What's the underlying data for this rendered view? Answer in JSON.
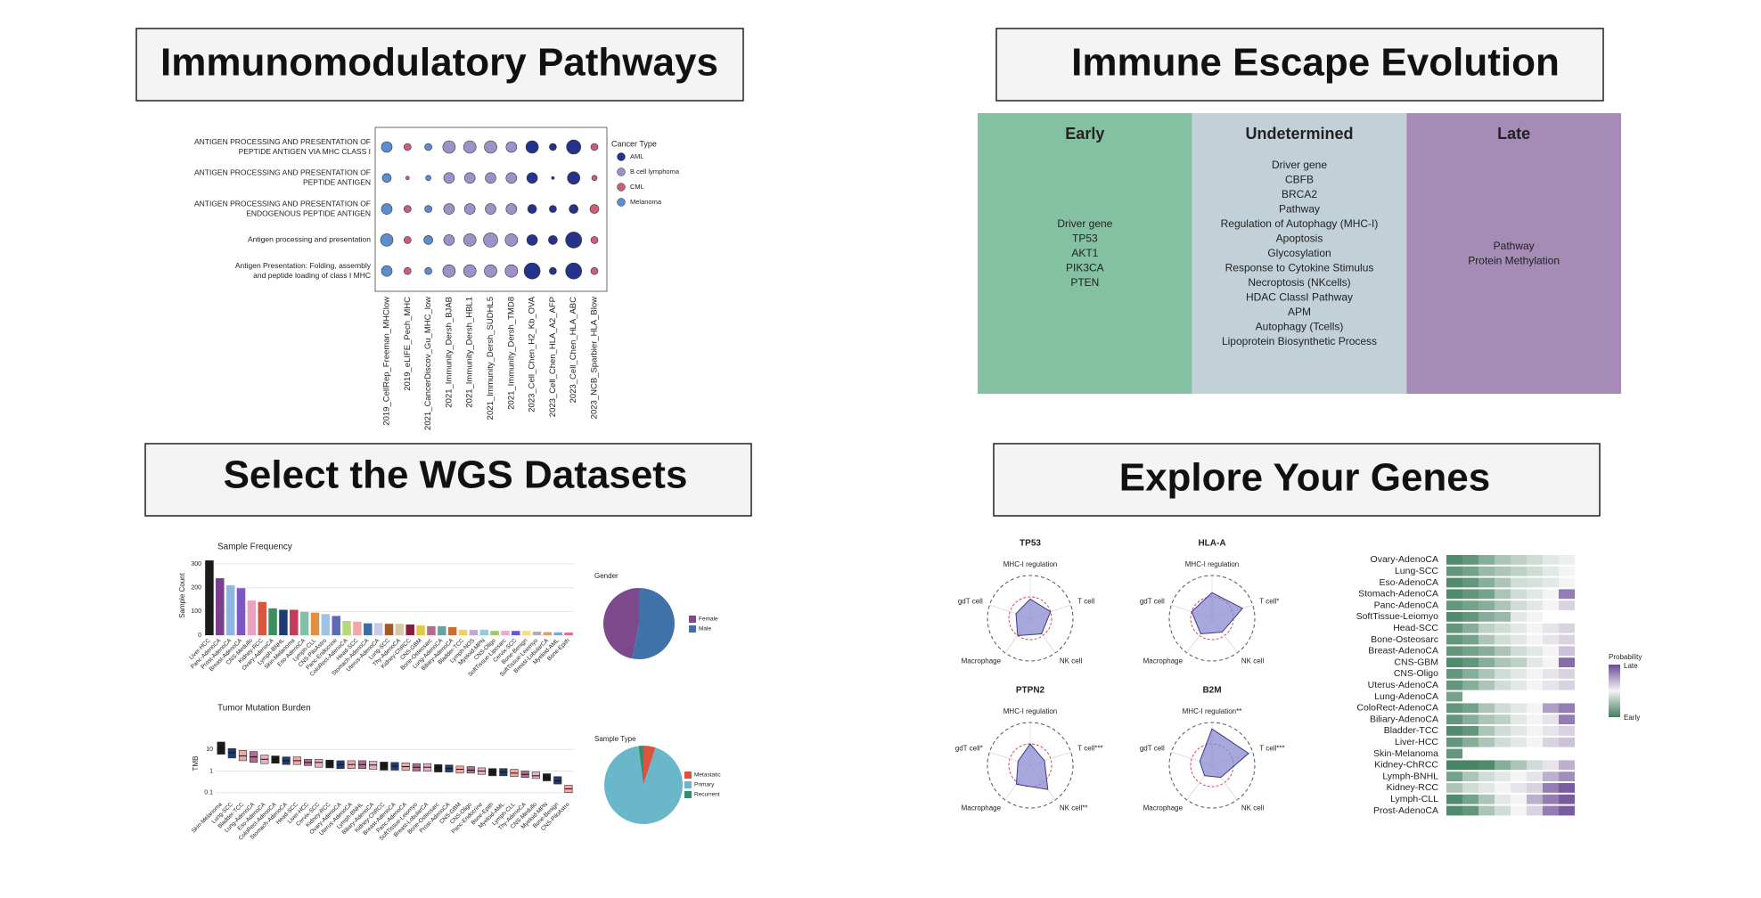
{
  "panels": [
    {
      "title": "Immunomodulatory Pathways",
      "chart": {
        "type": "dotplot",
        "pathways": [
          [
            "ANTIGEN PROCESSING AND PRESENTATION OF",
            "PEPTIDE ANTIGEN VIA MHC CLASS I"
          ],
          [
            "ANTIGEN PROCESSING AND PRESENTATION OF",
            "PEPTIDE ANTIGEN"
          ],
          [
            "ANTIGEN PROCESSING AND PRESENTATION OF",
            "ENDOGENOUS PEPTIDE ANTIGEN"
          ],
          [
            "Antigen processing and presentation"
          ],
          [
            "Antigen Presentation: Folding, assembly",
            "and peptide loading of class I MHC"
          ]
        ],
        "datasets": [
          "2019_CellRep_Freeman_MHClow",
          "2019_eLIFE_Pech_MHC",
          "2021_CancerDiscov_Gu_MHC_low",
          "2021_Immunity_Dersh_BJAB",
          "2021_Immunity_Dersh_HBL1",
          "2021_Immunity_Dersh_SUDHL5",
          "2021_Immunity_Dersh_TMD8",
          "2023_Cell_Chen_H2_Kb_OVA",
          "2023_Cell_Chen_HLA_A2_AFP",
          "2023_Cell_Chen_HLA_ABC",
          "2023_NCB_Sparbier_HLA_Blow"
        ],
        "dataset_types": [
          "Melanoma",
          "CML",
          "Melanoma",
          "B cell lymphoma",
          "B cell lymphoma",
          "B cell lymphoma",
          "B cell lymphoma",
          "AML",
          "AML",
          "AML",
          "CML"
        ],
        "sizes": [
          [
            3,
            2,
            2,
            3.5,
            3.5,
            3.5,
            3,
            3.5,
            2,
            4,
            2
          ],
          [
            2.5,
            1,
            1.5,
            3,
            3,
            3,
            3,
            3,
            0.8,
            3.5,
            1.5
          ],
          [
            3,
            2,
            2,
            3,
            3,
            3,
            3,
            2.5,
            2,
            2.5,
            2.5
          ],
          [
            3.5,
            2,
            2.5,
            3,
            3.5,
            4,
            3.5,
            3,
            2.5,
            4.5,
            2
          ],
          [
            3,
            2,
            2,
            3.5,
            3.5,
            3.5,
            3.5,
            4.5,
            2,
            4.5,
            2
          ]
        ],
        "legend_title": "Cancer Type",
        "legend": [
          {
            "name": "AML",
            "color": "#26338a"
          },
          {
            "name": "B cell lymphoma",
            "color": "#9c92c8"
          },
          {
            "name": "CML",
            "color": "#c9607a"
          },
          {
            "name": "Melanoma",
            "color": "#5b8ed1"
          }
        ]
      }
    },
    {
      "title": "Immune Escape Evolution",
      "table": {
        "columns": [
          {
            "header": "Early",
            "color": "#84c1a3",
            "items": [
              "Driver gene",
              "TP53",
              "AKT1",
              "PIK3CA",
              "PTEN"
            ]
          },
          {
            "header": "Undetermined",
            "color": "#c2d1d8",
            "items": [
              "Driver gene",
              "CBFB",
              "BRCA2",
              "Pathway",
              "Regulation of Autophagy (MHC-I)",
              "Apoptosis",
              "Glycosylation",
              "Response to Cytokine Stimulus",
              "Necroptosis (NKcells)",
              "HDAC ClassI Pathway",
              "APM",
              "Autophagy (Tcells)",
              "Lipoprotein Biosynthetic Process"
            ]
          },
          {
            "header": "Late",
            "color": "#a58bb5",
            "items": [
              "Pathway",
              "Protein Methylation"
            ]
          }
        ]
      }
    },
    {
      "title": "Select the WGS Datasets",
      "palette": [
        "#1b1b1b",
        "#7b3f8c",
        "#8fb5e0",
        "#7e57c2",
        "#e7a3c0",
        "#d9553f",
        "#3d8f5f",
        "#1f3b73",
        "#c23b5a",
        "#7fc2a9",
        "#e48f3c",
        "#9ec3e6",
        "#5b6bb5",
        "#b7d97a",
        "#f0a8a8",
        "#3a6ea5",
        "#c9c9e8",
        "#a05a2c",
        "#d8c7a8",
        "#8b1c3f",
        "#e0c94b",
        "#b36b8f",
        "#66a3a3",
        "#d06c2b",
        "#f0d264",
        "#c6a4d8",
        "#8fcfd8",
        "#a0c96f",
        "#e8b0c8",
        "#6a5acd",
        "#f3e08e",
        "#b0b0b0",
        "#cda36c",
        "#76a7d6",
        "#d96f8a"
      ],
      "frequency": {
        "type": "bar",
        "title": "Sample Frequency",
        "ylabel": "Sample Count",
        "categories": [
          "Liver-HCC",
          "Panc-AdenoCA",
          "Prost-AdenoCA",
          "Breast-AdenoCA",
          "CNS-Medullo",
          "Kidney-RCC",
          "Ovary-AdenoCA",
          "Lymph-BNHL",
          "Skin-Melanoma",
          "Eso-AdenoCA",
          "Lymph-CLL",
          "CNS-PiloAstro",
          "Panc-Endocrine",
          "ColoRect-AdenoCA",
          "Head-SCC",
          "Stomach-AdenoCA",
          "Uterus-AdenoCA",
          "Lung-SCC",
          "Thy-AdenoCA",
          "Kidney-ChRCC",
          "CNS-GBM",
          "Bone-Osteosarc",
          "Lung-AdenoCA",
          "Biliary-AdenoCA",
          "Bladder-TCC",
          "Lymph-NOS",
          "Myeloid-MPN",
          "CNS-Oligo",
          "SoftTissue-Liposarc",
          "Cervix-SCC",
          "Bone-Benign",
          "SoftTissue-Leiomyo",
          "Breast-LobularCA",
          "Myeloid-AML",
          "Bone-Epith"
        ],
        "values": [
          315,
          240,
          210,
          198,
          146,
          140,
          113,
          107,
          107,
          98,
          95,
          89,
          81,
          60,
          57,
          50,
          51,
          48,
          48,
          45,
          41,
          38,
          38,
          34,
          23,
          22,
          23,
          18,
          19,
          18,
          19,
          15,
          13,
          12,
          11
        ],
        "ylim": [
          0,
          334
        ],
        "yticks": [
          0,
          100,
          200,
          300
        ]
      },
      "gender": {
        "type": "pie",
        "title": "Gender",
        "labels": [
          "Female",
          "Male"
        ],
        "values": [
          47,
          53
        ],
        "colors": [
          "#7c4a8c",
          "#3f72a8"
        ]
      },
      "tmb": {
        "type": "box",
        "title": "Tumor Mutation Burden",
        "ylabel": "TMB",
        "log_scale": true,
        "categories": [
          "Skin-Melanoma",
          "Lung-SCC",
          "Bladder-TCC",
          "Lung-AdenoCA",
          "Eso-AdenoCA",
          "ColoRect-AdenoCA",
          "Stomach-AdenoCA",
          "Head-SCC",
          "Liver-HCC",
          "Cervix-SCC",
          "Kidney-RCC",
          "Ovary-AdenoCA",
          "Uterus-AdenoCA",
          "Lymph-BNHL",
          "Biliary-AdenoCA",
          "Kidney-ChRCC",
          "Breast-AdenoCA",
          "Panc-AdenoCA",
          "SoftTissue-Leiomyo",
          "Breast-LobularCA",
          "Bone-Osteosarc",
          "Prost-AdenoCA",
          "CNS-GBM",
          "CNS-Oligo",
          "Panc-Endocrine",
          "Bone-Epith",
          "Myeloid-AML",
          "Lymph-CLL",
          "Thy-AdenoCA",
          "CNS-Medullo",
          "Myeloid-MPN",
          "Bone-Benign",
          "CNS-PiloAstro"
        ],
        "q1": [
          6,
          4,
          3,
          2.5,
          2.2,
          2.3,
          2,
          2,
          1.8,
          1.5,
          1.4,
          1.3,
          1.3,
          1.3,
          1.2,
          1.1,
          1.1,
          1.1,
          1,
          1,
          0.9,
          0.9,
          0.8,
          0.8,
          0.7,
          0.6,
          0.6,
          0.55,
          0.5,
          0.45,
          0.35,
          0.25,
          0.1
        ],
        "median": [
          12,
          7,
          5,
          4.5,
          3.5,
          3.5,
          3,
          3,
          2.5,
          2.5,
          2.2,
          2,
          2,
          2,
          1.9,
          1.8,
          1.7,
          1.6,
          1.5,
          1.5,
          1.4,
          1.3,
          1.2,
          1.1,
          1,
          0.9,
          0.9,
          0.8,
          0.7,
          0.6,
          0.5,
          0.35,
          0.15
        ],
        "q3": [
          22,
          11,
          9,
          8,
          5.5,
          5,
          4.5,
          4.5,
          3.5,
          3.5,
          3.2,
          3,
          3,
          3,
          2.8,
          2.6,
          2.5,
          2.4,
          2.2,
          2.2,
          2,
          1.9,
          1.7,
          1.6,
          1.4,
          1.3,
          1.3,
          1.2,
          1,
          0.9,
          0.75,
          0.55,
          0.22
        ],
        "ylim": [
          0.05,
          100
        ],
        "yticks": [
          0.1,
          1,
          10
        ]
      },
      "sample_type": {
        "type": "pie",
        "title": "Sample Type",
        "labels": [
          "Metastatic",
          "Primary",
          "Recurrent"
        ],
        "values": [
          5,
          93,
          2
        ],
        "colors": [
          "#d9553f",
          "#6ab7c9",
          "#2f8f6f"
        ]
      }
    },
    {
      "title": "Explore Your Genes",
      "radars": [
        {
          "type": "radar",
          "gene": "TP53",
          "axes": [
            "MHC-I regulation",
            "T cell",
            "NK cell",
            "Macrophage",
            "gdT cell"
          ],
          "values": [
            0.45,
            0.5,
            0.45,
            0.5,
            0.35
          ]
        },
        {
          "type": "radar",
          "gene": "HLA-A",
          "axes": [
            "MHC-I regulation",
            "T cell*",
            "NK cell",
            "Macrophage",
            "gdT cell"
          ],
          "values": [
            0.6,
            0.75,
            0.4,
            0.45,
            0.5
          ]
        },
        {
          "type": "radar",
          "gene": "PTPN2",
          "axes": [
            "MHC-I regulation",
            "T cell***",
            "NK cell**",
            "Macrophage",
            "gdT cell*"
          ],
          "values": [
            0.5,
            0.35,
            0.7,
            0.55,
            0.3
          ]
        },
        {
          "type": "radar",
          "gene": "B2M",
          "axes": [
            "MHC-I regulation**",
            "T cell***",
            "NK cell",
            "Macrophage",
            "gdT cell"
          ],
          "values": [
            0.85,
            0.9,
            0.35,
            0.3,
            0.3
          ]
        }
      ],
      "heatmap": {
        "type": "heatmap",
        "legend_title": "Probability",
        "high_label": "Late",
        "low_label": "Early",
        "low_color": "#3f7f5e",
        "mid_color": "#f4f4f4",
        "high_color": "#6b4a96",
        "rows": [
          "Ovary-AdenoCA",
          "Lung-SCC",
          "Eso-AdenoCA",
          "Stomach-AdenoCA",
          "Panc-AdenoCA",
          "SoftTissue-Leiomyo",
          "Head-SCC",
          "Bone-Osteosarc",
          "Breast-AdenoCA",
          "CNS-GBM",
          "CNS-Oligo",
          "Uterus-AdenoCA",
          "Lung-AdenoCA",
          "ColoRect-AdenoCA",
          "Biliary-AdenoCA",
          "Bladder-TCC",
          "Liver-HCC",
          "Skin-Melanoma",
          "Kidney-ChRCC",
          "Lymph-BNHL",
          "Kidney-RCC",
          "Lymph-CLL",
          "Prost-AdenoCA"
        ],
        "values": [
          [
            0.05,
            0.1,
            0.2,
            0.3,
            0.35,
            0.4,
            0.45,
            0.48
          ],
          [
            0.1,
            0.15,
            0.25,
            0.3,
            0.35,
            0.4,
            0.45,
            0.5
          ],
          [
            0.05,
            0.1,
            0.2,
            0.3,
            0.4,
            0.42,
            0.45,
            0.5
          ],
          [
            0.05,
            0.1,
            0.15,
            0.3,
            0.4,
            0.45,
            0.5,
            0.85
          ],
          [
            0.1,
            0.15,
            0.2,
            0.3,
            0.4,
            0.45,
            0.5,
            0.6
          ],
          [
            0.05,
            0.1,
            0.2,
            0.25,
            0.45,
            0.5,
            null,
            null
          ],
          [
            0.1,
            0.2,
            0.35,
            0.4,
            0.45,
            0.5,
            0.55,
            0.6
          ],
          [
            0.1,
            0.15,
            0.3,
            0.4,
            0.45,
            0.5,
            0.55,
            0.6
          ],
          [
            0.1,
            0.15,
            0.2,
            0.3,
            0.4,
            0.45,
            0.5,
            0.65
          ],
          [
            0.05,
            0.1,
            0.2,
            0.3,
            0.35,
            0.45,
            0.5,
            0.9
          ],
          [
            0.1,
            0.2,
            0.3,
            0.4,
            0.45,
            0.5,
            0.55,
            0.6
          ],
          [
            0.1,
            0.2,
            0.3,
            0.4,
            0.45,
            0.5,
            0.55,
            0.6
          ],
          [
            0.15,
            null,
            null,
            null,
            null,
            null,
            null,
            null
          ],
          [
            0.1,
            0.15,
            0.3,
            0.4,
            0.45,
            0.5,
            0.75,
            0.85
          ],
          [
            0.1,
            0.2,
            0.3,
            0.35,
            0.45,
            0.5,
            0.55,
            0.85
          ],
          [
            0.05,
            0.1,
            0.3,
            0.4,
            0.45,
            0.5,
            0.55,
            0.6
          ],
          [
            0.1,
            0.2,
            0.3,
            0.4,
            0.45,
            0.5,
            0.6,
            0.65
          ],
          [
            0.1,
            null,
            null,
            null,
            null,
            null,
            null,
            null
          ],
          [
            0.02,
            0.02,
            0.05,
            0.2,
            0.3,
            0.4,
            0.55,
            0.7
          ],
          [
            0.15,
            0.3,
            0.4,
            0.45,
            0.5,
            0.55,
            0.7,
            0.8
          ],
          [
            0.3,
            0.4,
            0.45,
            0.5,
            0.55,
            0.6,
            0.85,
            0.95
          ],
          [
            0.05,
            0.15,
            0.3,
            0.45,
            0.5,
            0.7,
            0.85,
            0.95
          ],
          [
            0.05,
            0.1,
            0.3,
            0.4,
            0.5,
            0.6,
            0.85,
            0.95
          ]
        ]
      }
    }
  ]
}
